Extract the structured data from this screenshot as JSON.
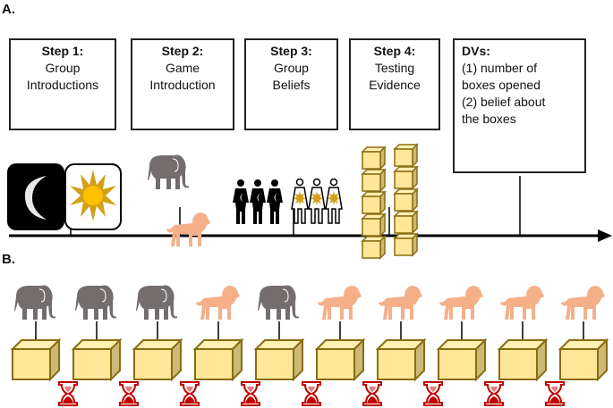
{
  "panel_a": {
    "label": "A.",
    "steps": [
      {
        "title": "Step 1:",
        "lines": [
          "Group",
          "Introductions"
        ]
      },
      {
        "title": "Step 2:",
        "lines": [
          "Game",
          "Introduction"
        ]
      },
      {
        "title": "Step 3:",
        "lines": [
          "Group",
          "Beliefs"
        ]
      },
      {
        "title": "Step 4:",
        "lines": [
          "Testing",
          "Evidence"
        ]
      }
    ],
    "dvs": {
      "title": "DVs:",
      "lines": [
        "(1) number of",
        "boxes opened",
        "(2) belief about",
        "the boxes"
      ]
    }
  },
  "panel_b": {
    "label": "B.",
    "sequence": [
      "elephant",
      "elephant",
      "elephant",
      "lion",
      "elephant",
      "lion",
      "lion",
      "lion",
      "lion",
      "lion"
    ]
  },
  "colors": {
    "elephant": "#736d6d",
    "lion": "#f5b08a",
    "box_fill": "#ffe699",
    "box_edge": "#8a6d12",
    "hourglass": "#c00000",
    "sun": "#d4a017"
  }
}
